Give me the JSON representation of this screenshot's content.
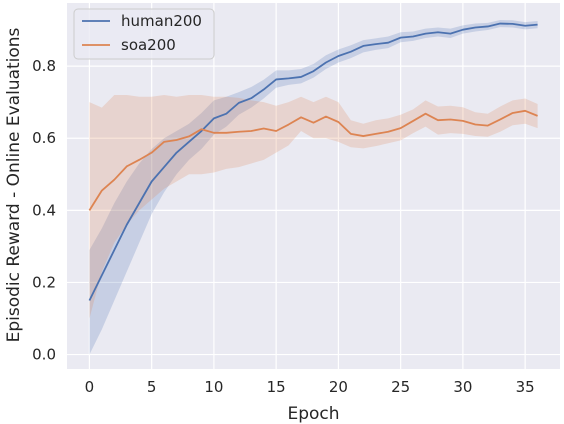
{
  "chart_data": {
    "type": "line",
    "xlabel": "Epoch",
    "ylabel": "Episodic Reward - Online Evaluations",
    "xlim": [
      -1.8,
      37.8
    ],
    "ylim": [
      -0.04,
      0.975
    ],
    "xticks": [
      0,
      5,
      10,
      15,
      20,
      25,
      30,
      35
    ],
    "xtick_labels": [
      "0",
      "5",
      "10",
      "15",
      "20",
      "25",
      "30",
      "35"
    ],
    "yticks": [
      0.0,
      0.2,
      0.4,
      0.6,
      0.8
    ],
    "ytick_labels": [
      "0.0",
      "0.2",
      "0.4",
      "0.6",
      "0.8"
    ],
    "grid": true,
    "background": "#eaeaf2",
    "legend_position": "top-left",
    "x": [
      0,
      1,
      2,
      3,
      4,
      5,
      6,
      7,
      8,
      9,
      10,
      11,
      12,
      13,
      14,
      15,
      16,
      17,
      18,
      19,
      20,
      21,
      22,
      23,
      24,
      25,
      26,
      27,
      28,
      29,
      30,
      31,
      32,
      33,
      34,
      35,
      36
    ],
    "series": [
      {
        "name": "human200",
        "color": "#4c72b0",
        "values": [
          0.15,
          0.22,
          0.29,
          0.36,
          0.42,
          0.48,
          0.52,
          0.56,
          0.59,
          0.62,
          0.655,
          0.668,
          0.698,
          0.711,
          0.735,
          0.763,
          0.766,
          0.77,
          0.786,
          0.81,
          0.828,
          0.84,
          0.856,
          0.861,
          0.865,
          0.879,
          0.882,
          0.89,
          0.894,
          0.89,
          0.901,
          0.907,
          0.91,
          0.918,
          0.917,
          0.912,
          0.915
        ],
        "lower": [
          0.0,
          0.07,
          0.15,
          0.23,
          0.31,
          0.39,
          0.45,
          0.5,
          0.54,
          0.57,
          0.61,
          0.632,
          0.665,
          0.685,
          0.71,
          0.74,
          0.748,
          0.752,
          0.768,
          0.792,
          0.81,
          0.822,
          0.838,
          0.845,
          0.85,
          0.866,
          0.87,
          0.878,
          0.882,
          0.878,
          0.89,
          0.896,
          0.9,
          0.908,
          0.907,
          0.902,
          0.905
        ],
        "upper": [
          0.29,
          0.35,
          0.42,
          0.48,
          0.53,
          0.57,
          0.6,
          0.62,
          0.64,
          0.67,
          0.705,
          0.715,
          0.728,
          0.742,
          0.762,
          0.788,
          0.788,
          0.792,
          0.806,
          0.83,
          0.846,
          0.858,
          0.872,
          0.877,
          0.882,
          0.894,
          0.896,
          0.904,
          0.907,
          0.904,
          0.913,
          0.918,
          0.92,
          0.928,
          0.927,
          0.922,
          0.925
        ]
      },
      {
        "name": "soa200",
        "color": "#dd8452",
        "values": [
          0.4,
          0.455,
          0.485,
          0.522,
          0.54,
          0.56,
          0.59,
          0.595,
          0.605,
          0.625,
          0.615,
          0.615,
          0.618,
          0.62,
          0.627,
          0.62,
          0.638,
          0.658,
          0.643,
          0.66,
          0.645,
          0.612,
          0.606,
          0.612,
          0.618,
          0.628,
          0.648,
          0.668,
          0.65,
          0.652,
          0.648,
          0.638,
          0.635,
          0.652,
          0.67,
          0.676,
          0.662
        ],
        "lower": [
          0.1,
          0.23,
          0.31,
          0.36,
          0.4,
          0.43,
          0.46,
          0.48,
          0.5,
          0.5,
          0.505,
          0.515,
          0.52,
          0.53,
          0.54,
          0.56,
          0.58,
          0.62,
          0.6,
          0.6,
          0.59,
          0.575,
          0.572,
          0.578,
          0.586,
          0.594,
          0.614,
          0.632,
          0.61,
          0.614,
          0.612,
          0.606,
          0.604,
          0.618,
          0.636,
          0.64,
          0.628
        ],
        "upper": [
          0.7,
          0.685,
          0.72,
          0.72,
          0.715,
          0.715,
          0.72,
          0.715,
          0.72,
          0.72,
          0.715,
          0.715,
          0.712,
          0.705,
          0.7,
          0.69,
          0.7,
          0.715,
          0.7,
          0.715,
          0.7,
          0.65,
          0.64,
          0.65,
          0.655,
          0.665,
          0.68,
          0.705,
          0.688,
          0.69,
          0.686,
          0.672,
          0.668,
          0.688,
          0.705,
          0.71,
          0.695
        ]
      }
    ]
  }
}
